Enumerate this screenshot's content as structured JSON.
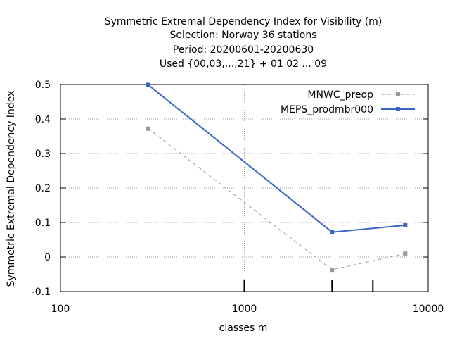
{
  "chart_data": {
    "type": "line",
    "title_lines": [
      "Symmetric Extremal Dependency Index  for Visibility (m)",
      "Selection: Norway     36 stations",
      "Period: 20200601-20200630",
      "Used {00,03,...,21} + 01 02 ... 09"
    ],
    "xlabel": "classes m",
    "ylabel": "Symmetric Extremal Dependency Index",
    "x_scale": "log",
    "xlim": [
      100,
      10000
    ],
    "ylim": [
      -0.1,
      0.5
    ],
    "x_ticks": [
      100,
      1000,
      10000
    ],
    "x_tick_labels": [
      "100",
      "1000",
      "10000"
    ],
    "y_ticks": [
      -0.1,
      0,
      0.1,
      0.2,
      0.3,
      0.4,
      0.5
    ],
    "y_tick_labels": [
      "-0.1",
      "0",
      "0.1",
      "0.2",
      "0.3",
      "0.4",
      "0.5"
    ],
    "grid": true,
    "legend_position": "top-right",
    "series": [
      {
        "name": "MNWC_preop",
        "color": "#999999",
        "dashed": true,
        "x": [
          300,
          3000,
          7500
        ],
        "y": [
          0.372,
          -0.037,
          0.01
        ]
      },
      {
        "name": "MEPS_prodmbr000",
        "color": "#3b64c8",
        "dashed": false,
        "x": [
          300,
          3000,
          7500
        ],
        "y": [
          0.499,
          0.072,
          0.092
        ]
      }
    ]
  }
}
